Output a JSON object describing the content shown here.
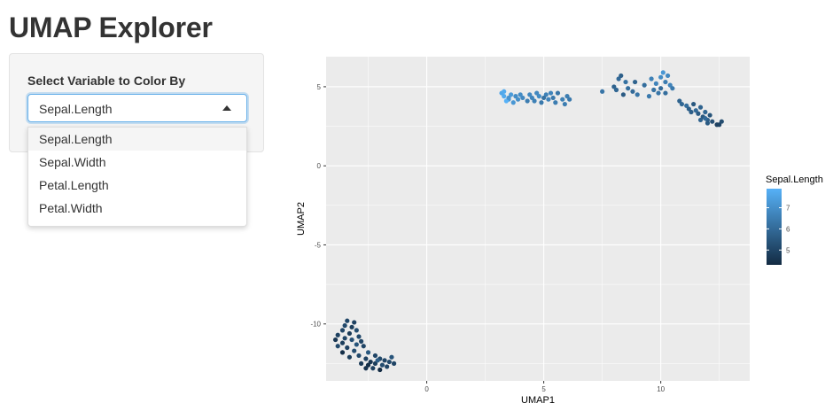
{
  "app": {
    "title": "UMAP Explorer"
  },
  "sidebar": {
    "select_label": "Select Variable to Color By",
    "selected_value": "Sepal.Length",
    "options": [
      "Sepal.Length",
      "Sepal.Width",
      "Petal.Length",
      "Petal.Width"
    ]
  },
  "chart_data": {
    "type": "scatter",
    "xlabel": "UMAP1",
    "ylabel": "UMAP2",
    "xlim": [
      -4.3,
      13.8
    ],
    "ylim": [
      -13.6,
      6.9
    ],
    "x_ticks": [
      0,
      5,
      10
    ],
    "y_ticks": [
      5,
      0,
      -5,
      -10
    ],
    "grid": true,
    "legend": {
      "title": "Sepal.Length",
      "ticks": [
        7,
        6,
        5
      ],
      "range": [
        4.3,
        7.9
      ],
      "position": "right"
    },
    "colors": {
      "low": "#132B43",
      "high": "#56B1F7",
      "panel": "#ebebeb",
      "grid": "#ffffff"
    },
    "points": [
      [
        -3.4,
        -9.8,
        5.0
      ],
      [
        -3.1,
        -9.9,
        4.9
      ],
      [
        -3.5,
        -10.1,
        5.1
      ],
      [
        -3.2,
        -10.2,
        4.8
      ],
      [
        -3.6,
        -10.4,
        5.0
      ],
      [
        -3.0,
        -10.4,
        5.2
      ],
      [
        -3.3,
        -10.6,
        4.7
      ],
      [
        -3.8,
        -10.7,
        4.9
      ],
      [
        -2.9,
        -10.8,
        5.1
      ],
      [
        -3.5,
        -10.9,
        5.0
      ],
      [
        -3.9,
        -11.0,
        4.6
      ],
      [
        -3.2,
        -11.0,
        5.3
      ],
      [
        -2.8,
        -11.1,
        5.0
      ],
      [
        -3.6,
        -11.2,
        4.8
      ],
      [
        -3.0,
        -11.3,
        5.4
      ],
      [
        -3.8,
        -11.4,
        5.1
      ],
      [
        -3.4,
        -11.5,
        4.9
      ],
      [
        -2.7,
        -11.4,
        5.0
      ],
      [
        -3.1,
        -11.7,
        5.2
      ],
      [
        -3.6,
        -11.8,
        4.4
      ],
      [
        -2.9,
        -12.0,
        5.1
      ],
      [
        -3.3,
        -12.1,
        4.8
      ],
      [
        -2.5,
        -11.8,
        5.5
      ],
      [
        -2.2,
        -12.0,
        5.0
      ],
      [
        -2.6,
        -12.2,
        4.9
      ],
      [
        -2.0,
        -12.2,
        5.1
      ],
      [
        -2.4,
        -12.4,
        4.6
      ],
      [
        -1.8,
        -12.3,
        5.0
      ],
      [
        -2.2,
        -12.5,
        4.8
      ],
      [
        -1.9,
        -12.6,
        5.2
      ],
      [
        -2.5,
        -12.6,
        4.4
      ],
      [
        -1.6,
        -12.4,
        5.1
      ],
      [
        -2.3,
        -12.8,
        4.9
      ],
      [
        -1.7,
        -12.7,
        5.0
      ],
      [
        -2.0,
        -12.9,
        4.3
      ],
      [
        -2.6,
        -12.8,
        4.5
      ],
      [
        -1.4,
        -12.5,
        5.0
      ],
      [
        -2.1,
        -12.3,
        5.7
      ],
      [
        -1.5,
        -12.1,
        5.4
      ],
      [
        -2.8,
        -12.5,
        4.7
      ],
      [
        3.2,
        4.6,
        7.6
      ],
      [
        3.3,
        4.4,
        7.7
      ],
      [
        3.5,
        4.2,
        7.2
      ],
      [
        3.6,
        4.5,
        7.3
      ],
      [
        3.4,
        4.1,
        7.9
      ],
      [
        3.8,
        4.4,
        6.9
      ],
      [
        3.9,
        4.2,
        7.0
      ],
      [
        4.1,
        4.3,
        6.8
      ],
      [
        4.3,
        4.1,
        6.5
      ],
      [
        4.5,
        4.3,
        6.7
      ],
      [
        4.6,
        4.1,
        6.6
      ],
      [
        4.8,
        4.4,
        6.9
      ],
      [
        4.9,
        4.0,
        6.4
      ],
      [
        5.1,
        4.5,
        6.6
      ],
      [
        5.2,
        4.2,
        6.7
      ],
      [
        5.4,
        4.3,
        6.4
      ],
      [
        5.5,
        4.0,
        6.5
      ],
      [
        5.6,
        4.6,
        6.3
      ],
      [
        5.8,
        4.2,
        6.6
      ],
      [
        6.0,
        4.4,
        6.5
      ],
      [
        3.7,
        4.0,
        7.2
      ],
      [
        4.0,
        4.5,
        6.9
      ],
      [
        4.7,
        4.6,
        6.8
      ],
      [
        5.0,
        4.3,
        6.2
      ],
      [
        5.3,
        4.6,
        6.7
      ],
      [
        5.9,
        3.9,
        6.5
      ],
      [
        4.4,
        4.5,
        6.8
      ],
      [
        3.3,
        4.7,
        7.7
      ],
      [
        3.5,
        4.3,
        7.1
      ],
      [
        6.1,
        4.2,
        6.4
      ],
      [
        7.5,
        4.7,
        6.3
      ],
      [
        8.0,
        5.0,
        5.8
      ],
      [
        8.2,
        5.5,
        6.0
      ],
      [
        8.3,
        5.7,
        5.7
      ],
      [
        8.5,
        5.3,
        6.2
      ],
      [
        8.1,
        4.8,
        5.9
      ],
      [
        8.6,
        4.9,
        6.1
      ],
      [
        8.4,
        4.5,
        5.6
      ],
      [
        8.8,
        4.7,
        6.0
      ],
      [
        8.9,
        5.3,
        5.8
      ],
      [
        9.0,
        4.5,
        6.3
      ],
      [
        9.3,
        5.1,
        6.1
      ],
      [
        9.5,
        4.4,
        6.4
      ],
      [
        9.7,
        4.8,
        6.2
      ],
      [
        9.8,
        5.2,
        6.7
      ],
      [
        9.9,
        4.6,
        6.3
      ],
      [
        10.0,
        5.6,
        6.9
      ],
      [
        10.1,
        5.9,
        7.2
      ],
      [
        10.2,
        5.3,
        6.5
      ],
      [
        10.3,
        5.7,
        6.8
      ],
      [
        10.4,
        5.1,
        6.7
      ],
      [
        10.5,
        4.9,
        6.4
      ],
      [
        9.6,
        5.5,
        6.6
      ],
      [
        10.0,
        4.9,
        6.0
      ],
      [
        10.2,
        4.6,
        6.1
      ],
      [
        10.8,
        4.1,
        5.8
      ],
      [
        11.1,
        3.8,
        6.1
      ],
      [
        11.2,
        3.6,
        5.7
      ],
      [
        11.4,
        3.9,
        5.5
      ],
      [
        11.5,
        3.5,
        6.0
      ],
      [
        11.6,
        3.3,
        5.6
      ],
      [
        11.7,
        3.7,
        5.8
      ],
      [
        11.8,
        3.1,
        5.5
      ],
      [
        11.9,
        3.4,
        5.9
      ],
      [
        12.0,
        2.9,
        5.7
      ],
      [
        12.1,
        3.2,
        5.4
      ],
      [
        12.0,
        2.7,
        5.6
      ],
      [
        11.7,
        2.9,
        5.8
      ],
      [
        12.5,
        2.6,
        5.0
      ],
      [
        12.6,
        2.8,
        5.2
      ],
      [
        12.4,
        2.6,
        4.9
      ],
      [
        11.3,
        3.4,
        5.7
      ],
      [
        11.9,
        3.0,
        6.0
      ],
      [
        10.9,
        3.9,
        5.9
      ],
      [
        12.2,
        2.8,
        5.3
      ]
    ]
  }
}
